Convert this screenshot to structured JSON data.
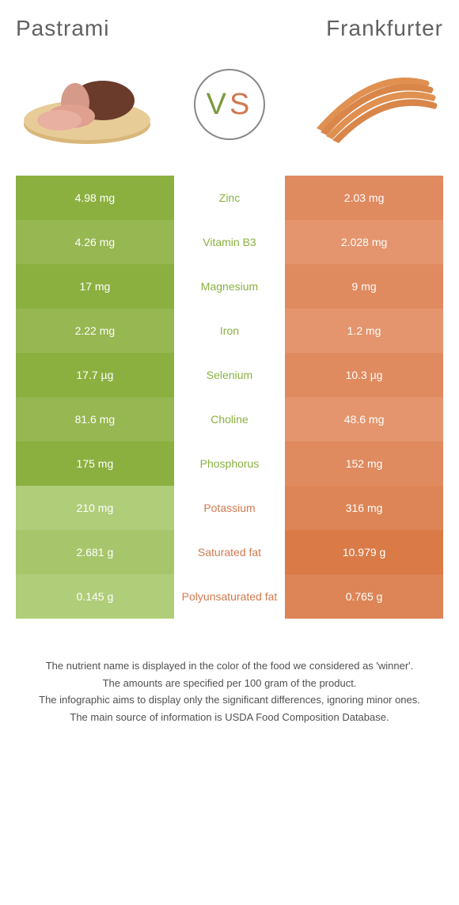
{
  "header": {
    "left": "Pastrami",
    "right": "Frankfurter"
  },
  "vs": {
    "v": "V",
    "s": "S"
  },
  "items": {
    "left": {
      "color": "#8bb040",
      "type": "pastrami"
    },
    "right": {
      "color": "#d97a47",
      "type": "frankfurter"
    }
  },
  "rows": [
    {
      "left": "4.98 mg",
      "label": "Zinc",
      "right": "2.03 mg",
      "winner": "green"
    },
    {
      "left": "4.26 mg",
      "label": "Vitamin B3",
      "right": "2.028 mg",
      "winner": "green"
    },
    {
      "left": "17 mg",
      "label": "Magnesium",
      "right": "9 mg",
      "winner": "green"
    },
    {
      "left": "2.22 mg",
      "label": "Iron",
      "right": "1.2 mg",
      "winner": "green"
    },
    {
      "left": "17.7 µg",
      "label": "Selenium",
      "right": "10.3 µg",
      "winner": "green"
    },
    {
      "left": "81.6 mg",
      "label": "Choline",
      "right": "48.6 mg",
      "winner": "green"
    },
    {
      "left": "175 mg",
      "label": "Phosphorus",
      "right": "152 mg",
      "winner": "green"
    },
    {
      "left": "210 mg",
      "label": "Potassium",
      "right": "316 mg",
      "winner": "orange"
    },
    {
      "left": "2.681 g",
      "label": "Saturated fat",
      "right": "10.979 g",
      "winner": "orange"
    },
    {
      "left": "0.145 g",
      "label": "Polyunsaturated fat",
      "right": "0.765 g",
      "winner": "orange"
    }
  ],
  "footnotes": {
    "l1": "The nutrient name is displayed in the color of the food we considered as 'winner'.",
    "l2": "The amounts are specified per 100 gram of the product.",
    "l3": "The infographic aims to display only the significant differences, ignoring minor ones.",
    "l4": "The main source of information is USDA Food Composition Database."
  }
}
